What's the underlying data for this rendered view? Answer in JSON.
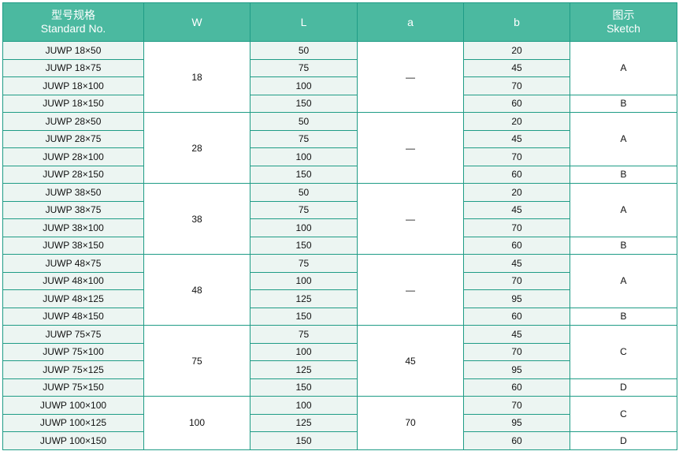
{
  "header": {
    "standard_cn": "型号规格",
    "standard_en": "Standard No.",
    "w": "W",
    "l": "L",
    "a": "a",
    "b": "b",
    "sketch_cn": "图示",
    "sketch_en": "Sketch"
  },
  "colors": {
    "header_bg": "#4bb9a0",
    "border": "#1f9c86",
    "cell_light": "#ecf5f2"
  },
  "groups": [
    {
      "w": "18",
      "a": "—",
      "rows": [
        {
          "std": "JUWP 18×50",
          "l": "50",
          "b": "20"
        },
        {
          "std": "JUWP 18×75",
          "l": "75",
          "b": "45"
        },
        {
          "std": "JUWP 18×100",
          "l": "100",
          "b": "70"
        },
        {
          "std": "JUWP 18×150",
          "l": "150",
          "b": "60"
        }
      ],
      "sketch": [
        {
          "label": "A",
          "span": 3
        },
        {
          "label": "B",
          "span": 1
        }
      ]
    },
    {
      "w": "28",
      "a": "—",
      "rows": [
        {
          "std": "JUWP 28×50",
          "l": "50",
          "b": "20"
        },
        {
          "std": "JUWP 28×75",
          "l": "75",
          "b": "45"
        },
        {
          "std": "JUWP 28×100",
          "l": "100",
          "b": "70"
        },
        {
          "std": "JUWP 28×150",
          "l": "150",
          "b": "60"
        }
      ],
      "sketch": [
        {
          "label": "A",
          "span": 3
        },
        {
          "label": "B",
          "span": 1
        }
      ]
    },
    {
      "w": "38",
      "a": "—",
      "rows": [
        {
          "std": "JUWP 38×50",
          "l": "50",
          "b": "20"
        },
        {
          "std": "JUWP 38×75",
          "l": "75",
          "b": "45"
        },
        {
          "std": "JUWP 38×100",
          "l": "100",
          "b": "70"
        },
        {
          "std": "JUWP 38×150",
          "l": "150",
          "b": "60"
        }
      ],
      "sketch": [
        {
          "label": "A",
          "span": 3
        },
        {
          "label": "B",
          "span": 1
        }
      ]
    },
    {
      "w": "48",
      "a": "—",
      "rows": [
        {
          "std": "JUWP 48×75",
          "l": "75",
          "b": "45"
        },
        {
          "std": "JUWP 48×100",
          "l": "100",
          "b": "70"
        },
        {
          "std": "JUWP 48×125",
          "l": "125",
          "b": "95"
        },
        {
          "std": "JUWP 48×150",
          "l": "150",
          "b": "60"
        }
      ],
      "sketch": [
        {
          "label": "A",
          "span": 3
        },
        {
          "label": "B",
          "span": 1
        }
      ]
    },
    {
      "w": "75",
      "a": "45",
      "rows": [
        {
          "std": "JUWP 75×75",
          "l": "75",
          "b": "45"
        },
        {
          "std": "JUWP 75×100",
          "l": "100",
          "b": "70"
        },
        {
          "std": "JUWP 75×125",
          "l": "125",
          "b": "95"
        },
        {
          "std": "JUWP 75×150",
          "l": "150",
          "b": "60"
        }
      ],
      "sketch": [
        {
          "label": "C",
          "span": 3
        },
        {
          "label": "D",
          "span": 1
        }
      ]
    },
    {
      "w": "100",
      "a": "70",
      "rows": [
        {
          "std": "JUWP 100×100",
          "l": "100",
          "b": "70"
        },
        {
          "std": "JUWP 100×125",
          "l": "125",
          "b": "95"
        },
        {
          "std": "JUWP 100×150",
          "l": "150",
          "b": "60"
        }
      ],
      "sketch": [
        {
          "label": "C",
          "span": 2
        },
        {
          "label": "D",
          "span": 1
        }
      ]
    }
  ]
}
